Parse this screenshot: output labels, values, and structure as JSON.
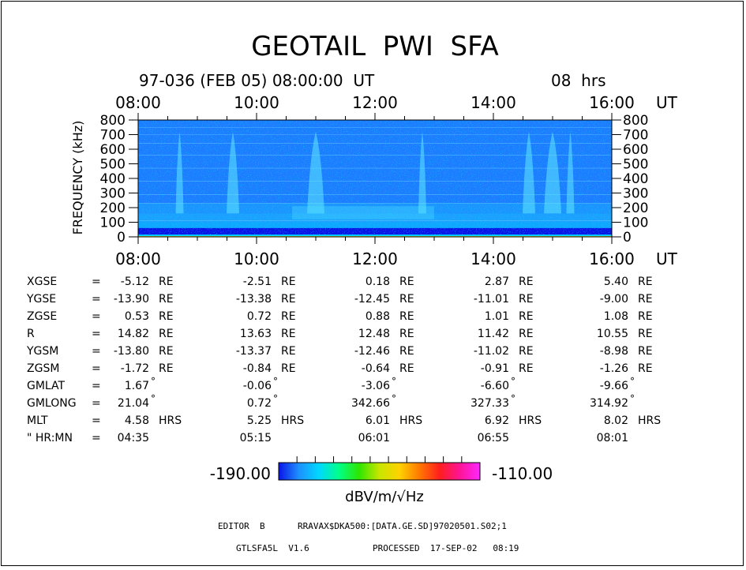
{
  "title": "GEOTAIL  PWI  SFA",
  "header": {
    "date_line": "97-036 (FEB 05) 08:00:00  UT",
    "duration": "08  hrs"
  },
  "colorbar": {
    "min_label": "-190.00",
    "max_label": "-110.00",
    "unit": "dBV/m/√Hz",
    "colors": [
      "#0a14e6",
      "#1e90ff",
      "#00d8ff",
      "#00ff88",
      "#2ee600",
      "#c8e600",
      "#ffd200",
      "#ff7800",
      "#ff1e1e",
      "#ff1496",
      "#ff28ff"
    ]
  },
  "chart_data": {
    "type": "heatmap",
    "title": "GEOTAIL PWI SFA",
    "xlabel": "UT",
    "ylabel": "FREQUENCY (kHz)",
    "x_ticks": [
      "08:00",
      "10:00",
      "12:00",
      "14:00",
      "16:00"
    ],
    "x_unit": "UT",
    "x_range_hours": [
      8,
      16
    ],
    "y_ticks": [
      "800",
      "700",
      "600",
      "500",
      "400",
      "300",
      "200",
      "100",
      "0"
    ],
    "y_range": [
      0,
      800
    ],
    "value_range": [
      -190,
      -110
    ],
    "features": [
      {
        "name": "background",
        "freq": [
          0,
          800
        ],
        "level": -180
      },
      {
        "name": "low-frequency band",
        "freq": [
          0,
          60
        ],
        "level": -185
      },
      {
        "name": "auroral emission bursts",
        "times": [
          8.7,
          9.6,
          11.0,
          12.8,
          14.6,
          15.0,
          15.3
        ],
        "level": -172
      }
    ]
  },
  "ephemeris": {
    "rows": [
      {
        "label": "XGSE",
        "eq": "=",
        "values": [
          "-5.12",
          "-2.51",
          "0.18",
          "2.87",
          "5.40"
        ],
        "unit": "RE"
      },
      {
        "label": "YGSE",
        "eq": "=",
        "values": [
          "-13.90",
          "-13.38",
          "-12.45",
          "-11.01",
          "-9.00"
        ],
        "unit": "RE"
      },
      {
        "label": "ZGSE",
        "eq": "=",
        "values": [
          "0.53",
          "0.72",
          "0.88",
          "1.01",
          "1.08"
        ],
        "unit": "RE"
      },
      {
        "label": "R",
        "eq": "=",
        "values": [
          "14.82",
          "13.63",
          "12.48",
          "11.42",
          "10.55"
        ],
        "unit": "RE"
      },
      {
        "label": "YGSM",
        "eq": "=",
        "values": [
          "-13.80",
          "-13.37",
          "-12.46",
          "-11.02",
          "-8.98"
        ],
        "unit": "RE"
      },
      {
        "label": "ZGSM",
        "eq": "=",
        "values": [
          "-1.72",
          "-0.84",
          "-0.64",
          "-0.91",
          "-1.26"
        ],
        "unit": "RE"
      },
      {
        "label": "GMLAT",
        "eq": "=",
        "values": [
          "1.67",
          "-0.06",
          "-3.06",
          "-6.60",
          "-9.66"
        ],
        "unit": "°"
      },
      {
        "label": "GMLONG",
        "eq": "=",
        "values": [
          "21.04",
          "0.72",
          "342.66",
          "327.33",
          "314.92"
        ],
        "unit": "°"
      },
      {
        "label": "MLT",
        "eq": "=",
        "values": [
          "4.58",
          "5.25",
          "6.01",
          "6.92",
          "8.02"
        ],
        "unit": "HRS"
      },
      {
        "label": "\"  HR:MN",
        "eq": "=",
        "values": [
          "04:35",
          "05:15",
          "06:01",
          "06:55",
          "08:01"
        ],
        "unit": ""
      }
    ]
  },
  "footer": {
    "editor_label": "EDITOR  B",
    "file_path": "RRAVAX$DKA500:[DATA.GE.SD]97020501.S02;1",
    "program": "GTLSFA5L  V1.6",
    "processed": "PROCESSED  17-SEP-02   08:19"
  }
}
